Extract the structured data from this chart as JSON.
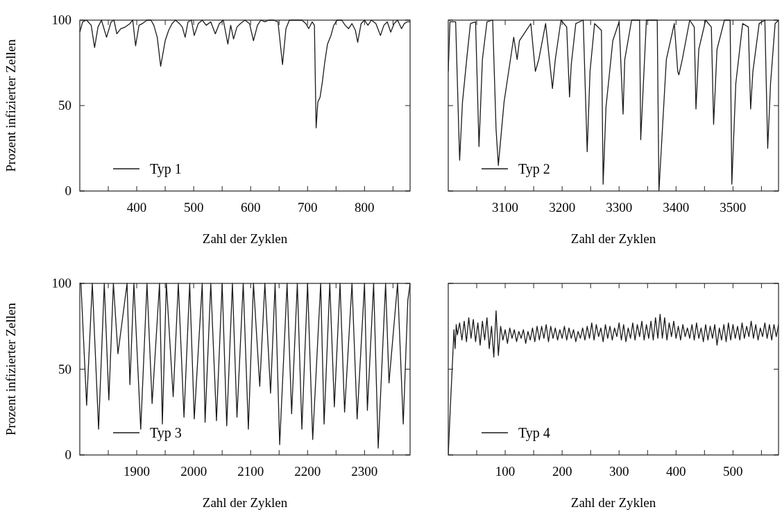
{
  "chart_data": [
    {
      "type": "line",
      "xlabel": "Zahl der Zyklen",
      "ylabel": "Prozent infizierter Zellen",
      "legend": "bottom left",
      "xlim": [
        300,
        880
      ],
      "ylim": [
        0,
        100
      ],
      "xticks": [
        {
          "value": 350,
          "label": null
        },
        400,
        {
          "value": 450,
          "label": null
        },
        500,
        {
          "value": 550,
          "label": null
        },
        600,
        {
          "value": 650,
          "label": null
        },
        700,
        {
          "value": 750,
          "label": null
        },
        800,
        {
          "value": 850,
          "label": null
        }
      ],
      "yticks": [
        0,
        50,
        100
      ],
      "series": [
        {
          "name": "Typ 1",
          "color": "#1a1a1a",
          "x": [
            300,
            305,
            312,
            320,
            326,
            332,
            338,
            347,
            355,
            360,
            365,
            372,
            380,
            388,
            393,
            398,
            404,
            410,
            418,
            425,
            430,
            436,
            442,
            450,
            456,
            462,
            468,
            475,
            480,
            485,
            490,
            496,
            501,
            508,
            515,
            522,
            530,
            538,
            545,
            552,
            560,
            565,
            570,
            576,
            582,
            590,
            598,
            605,
            612,
            618,
            625,
            632,
            640,
            648,
            656,
            662,
            668,
            680,
            690,
            697,
            702,
            708,
            712,
            715,
            718,
            722,
            726,
            730,
            735,
            741,
            746,
            752,
            760,
            766,
            772,
            778,
            784,
            788,
            794,
            800,
            806,
            812,
            820,
            828,
            834,
            840,
            846,
            852,
            858,
            865,
            870,
            875,
            880
          ],
          "values": [
            93,
            99,
            100,
            97,
            84,
            96,
            100,
            90,
            99,
            100,
            92,
            95,
            96,
            98,
            100,
            85,
            97,
            98,
            100,
            100,
            97,
            90,
            73,
            88,
            94,
            98,
            100,
            98,
            96,
            90,
            99,
            100,
            91,
            98,
            100,
            97,
            99,
            92,
            98,
            100,
            86,
            97,
            89,
            96,
            98,
            100,
            98,
            88,
            97,
            100,
            99,
            100,
            100,
            99,
            74,
            95,
            100,
            100,
            100,
            98,
            95,
            99,
            97,
            37,
            52,
            55,
            64,
            75,
            86,
            91,
            97,
            100,
            100,
            97,
            95,
            98,
            94,
            87,
            98,
            100,
            97,
            100,
            98,
            91,
            97,
            99,
            93,
            98,
            100,
            95,
            98,
            99,
            99
          ]
        }
      ]
    },
    {
      "type": "line",
      "xlabel": "Zahl der Zyklen",
      "legend": "bottom left",
      "tick_labels": "x",
      "xlim": [
        3000,
        3580
      ],
      "ylim": [
        0,
        100
      ],
      "xticks": [
        {
          "value": 3050,
          "label": null
        },
        3100,
        {
          "value": 3150,
          "label": null
        },
        3200,
        {
          "value": 3250,
          "label": null
        },
        3300,
        {
          "value": 3350,
          "label": null
        },
        3400,
        {
          "value": 3450,
          "label": null
        },
        3500,
        {
          "value": 3550,
          "label": null
        }
      ],
      "yticks": [
        {
          "value": 0,
          "label": null
        },
        {
          "value": 50,
          "label": null
        },
        {
          "value": 100,
          "label": null
        }
      ],
      "series": [
        {
          "name": "Typ 2",
          "color": "#1a1a1a",
          "x": [
            3000,
            3003,
            3013,
            3020,
            3025,
            3033,
            3039,
            3048,
            3054,
            3060,
            3068,
            3078,
            3084,
            3088,
            3098,
            3111,
            3115,
            3121,
            3125,
            3145,
            3153,
            3159,
            3171,
            3183,
            3188,
            3198,
            3208,
            3213,
            3216,
            3224,
            3237,
            3244,
            3249,
            3257,
            3269,
            3272,
            3277,
            3289,
            3300,
            3307,
            3310,
            3322,
            3336,
            3338,
            3348,
            3367,
            3370,
            3383,
            3397,
            3403,
            3405,
            3411,
            3424,
            3432,
            3435,
            3440,
            3452,
            3462,
            3466,
            3472,
            3485,
            3495,
            3498,
            3505,
            3517,
            3527,
            3531,
            3535,
            3546,
            3556,
            3561,
            3566,
            3574,
            3580
          ],
          "values": [
            70,
            99,
            99,
            18,
            52,
            79,
            98,
            99,
            26,
            77,
            99,
            100,
            36,
            15,
            52,
            81,
            90,
            77,
            88,
            98,
            70,
            77,
            98,
            60,
            77,
            100,
            96,
            55,
            74,
            98,
            100,
            23,
            70,
            98,
            94,
            4,
            49,
            88,
            99,
            45,
            77,
            100,
            100,
            30,
            100,
            100,
            0,
            77,
            98,
            70,
            68,
            77,
            100,
            96,
            48,
            83,
            100,
            96,
            39,
            83,
            100,
            100,
            4,
            63,
            98,
            96,
            48,
            70,
            98,
            100,
            25,
            63,
            98,
            100
          ]
        }
      ]
    },
    {
      "type": "line",
      "xlabel": "Zahl der Zyklen",
      "ylabel": "Prozent infizierter Zellen",
      "legend": "bottom left",
      "xlim": [
        1800,
        2380
      ],
      "ylim": [
        0,
        100
      ],
      "xticks": [
        {
          "value": 1850,
          "label": null
        },
        1900,
        {
          "value": 1950,
          "label": null
        },
        2000,
        {
          "value": 2050,
          "label": null
        },
        2100,
        {
          "value": 2150,
          "label": null
        },
        2200,
        {
          "value": 2250,
          "label": null
        },
        2300,
        {
          "value": 2350,
          "label": null
        }
      ],
      "yticks": [
        0,
        50,
        100
      ],
      "series": [
        {
          "name": "Typ 3",
          "color": "#1a1a1a",
          "x": [
            1800,
            1802,
            1812,
            1822,
            1833,
            1843,
            1851,
            1859,
            1867,
            1883,
            1888,
            1895,
            1907,
            1918,
            1927,
            1940,
            1945,
            1952,
            1964,
            1973,
            1983,
            1993,
            2001,
            2015,
            2020,
            2030,
            2040,
            2050,
            2058,
            2068,
            2076,
            2087,
            2096,
            2105,
            2116,
            2125,
            2135,
            2143,
            2151,
            2164,
            2172,
            2182,
            2190,
            2200,
            2209,
            2223,
            2229,
            2239,
            2247,
            2257,
            2265,
            2278,
            2287,
            2300,
            2305,
            2316,
            2324,
            2337,
            2343,
            2358,
            2368,
            2376,
            2380
          ],
          "values": [
            100,
            100,
            29,
            100,
            15,
            100,
            32,
            100,
            59,
            100,
            41,
            100,
            15,
            100,
            30,
            100,
            18,
            100,
            34,
            100,
            22,
            100,
            21,
            100,
            19,
            100,
            20,
            100,
            17,
            100,
            22,
            100,
            15,
            100,
            40,
            100,
            36,
            100,
            6,
            100,
            24,
            100,
            15,
            100,
            9,
            100,
            18,
            100,
            28,
            100,
            25,
            100,
            21,
            100,
            26,
            100,
            4,
            100,
            42,
            100,
            18,
            90,
            100
          ]
        }
      ]
    },
    {
      "type": "line",
      "xlabel": "Zahl der Zyklen",
      "legend": "bottom left",
      "tick_labels": "x",
      "xlim": [
        0,
        580
      ],
      "ylim": [
        0,
        100
      ],
      "xticks": [
        {
          "value": 50,
          "label": null
        },
        100,
        {
          "value": 150,
          "label": null
        },
        200,
        {
          "value": 250,
          "label": null
        },
        300,
        {
          "value": 350,
          "label": null
        },
        400,
        {
          "value": 450,
          "label": null
        },
        500,
        {
          "value": 550,
          "label": null
        }
      ],
      "yticks": [
        {
          "value": 0,
          "label": null
        },
        {
          "value": 50,
          "label": null
        },
        {
          "value": 100,
          "label": null
        }
      ],
      "series": [
        {
          "name": "Typ 4",
          "color": "#1a1a1a",
          "x": [
            0,
            4,
            8,
            10,
            12,
            14,
            16,
            20,
            24,
            28,
            32,
            36,
            40,
            44,
            48,
            52,
            56,
            60,
            64,
            68,
            72,
            76,
            80,
            84,
            88,
            92,
            96,
            100,
            104,
            108,
            112,
            116,
            120,
            124,
            128,
            132,
            136,
            140,
            144,
            148,
            152,
            156,
            160,
            164,
            168,
            172,
            176,
            180,
            184,
            188,
            192,
            196,
            200,
            204,
            208,
            212,
            216,
            220,
            224,
            228,
            232,
            236,
            240,
            244,
            248,
            252,
            256,
            260,
            264,
            268,
            272,
            276,
            280,
            284,
            288,
            292,
            296,
            300,
            304,
            308,
            312,
            316,
            320,
            324,
            328,
            332,
            336,
            340,
            344,
            348,
            352,
            356,
            360,
            364,
            368,
            372,
            376,
            380,
            384,
            388,
            392,
            396,
            400,
            404,
            408,
            412,
            416,
            420,
            424,
            428,
            432,
            436,
            440,
            444,
            448,
            452,
            456,
            460,
            464,
            468,
            472,
            476,
            480,
            484,
            488,
            492,
            496,
            500,
            504,
            508,
            512,
            516,
            520,
            524,
            528,
            532,
            536,
            540,
            544,
            548,
            552,
            556,
            560,
            564,
            568,
            572,
            576,
            580
          ],
          "values": [
            0,
            30,
            58,
            73,
            62,
            76,
            70,
            77,
            67,
            78,
            66,
            80,
            68,
            79,
            66,
            77,
            64,
            78,
            67,
            80,
            62,
            75,
            57,
            84,
            58,
            75,
            67,
            73,
            65,
            74,
            68,
            73,
            66,
            72,
            68,
            73,
            65,
            72,
            67,
            74,
            66,
            75,
            67,
            75,
            68,
            76,
            66,
            75,
            68,
            74,
            67,
            73,
            68,
            75,
            67,
            74,
            68,
            73,
            66,
            72,
            68,
            74,
            67,
            75,
            68,
            77,
            67,
            76,
            69,
            74,
            66,
            76,
            68,
            75,
            67,
            74,
            69,
            77,
            67,
            76,
            66,
            74,
            68,
            77,
            67,
            76,
            69,
            78,
            67,
            76,
            68,
            78,
            67,
            80,
            68,
            82,
            68,
            80,
            67,
            77,
            69,
            78,
            68,
            75,
            67,
            76,
            69,
            74,
            68,
            76,
            67,
            77,
            68,
            74,
            66,
            76,
            67,
            75,
            68,
            76,
            64,
            74,
            67,
            76,
            66,
            77,
            67,
            76,
            68,
            75,
            67,
            77,
            68,
            75,
            69,
            78,
            68,
            76,
            67,
            74,
            69,
            77,
            68,
            76,
            67,
            76,
            69,
            76
          ]
        }
      ]
    }
  ]
}
